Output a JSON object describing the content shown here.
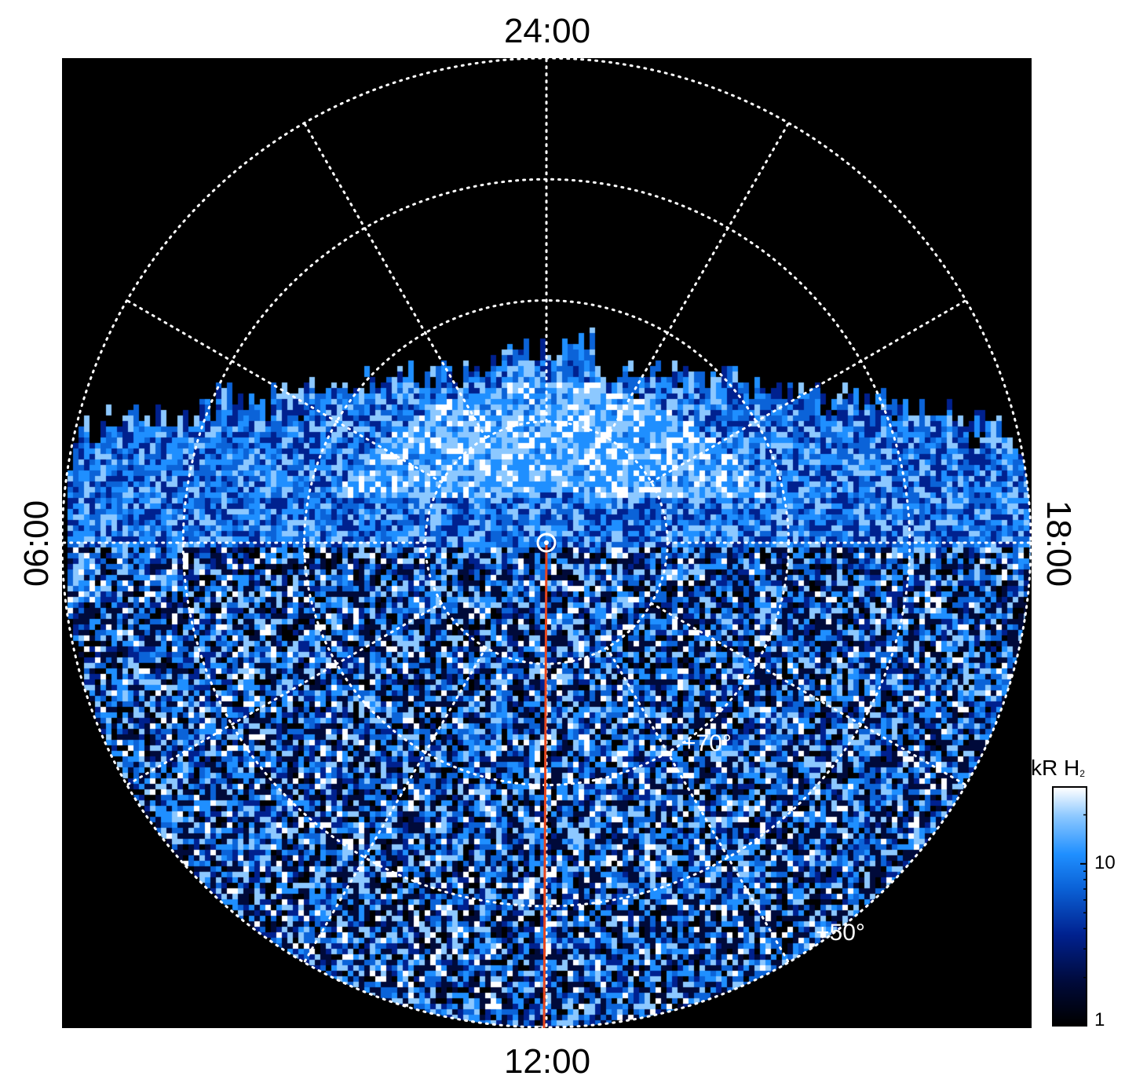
{
  "chart_data": {
    "type": "heatmap",
    "projection": "polar (north pole view)",
    "colormap": [
      "#000000",
      "#000a3a",
      "#00218f",
      "#0b63d8",
      "#1f8fff",
      "#8cc8ff",
      "#ffffff"
    ],
    "local_time_labels": {
      "top": "24:00",
      "bottom": "12:00",
      "left": "06:00",
      "right": "18:00"
    },
    "latitude_labels": [
      "+70°",
      "+50°"
    ],
    "colorbar": {
      "title": "kR H",
      "title_subscript": "2",
      "scale": "log",
      "range": [
        1,
        30
      ],
      "tick_labels": [
        "10",
        "1"
      ],
      "tick_values": [
        10,
        1
      ]
    },
    "grid": true,
    "meridian_line_color": "#e8461e",
    "pole_marker": true
  }
}
